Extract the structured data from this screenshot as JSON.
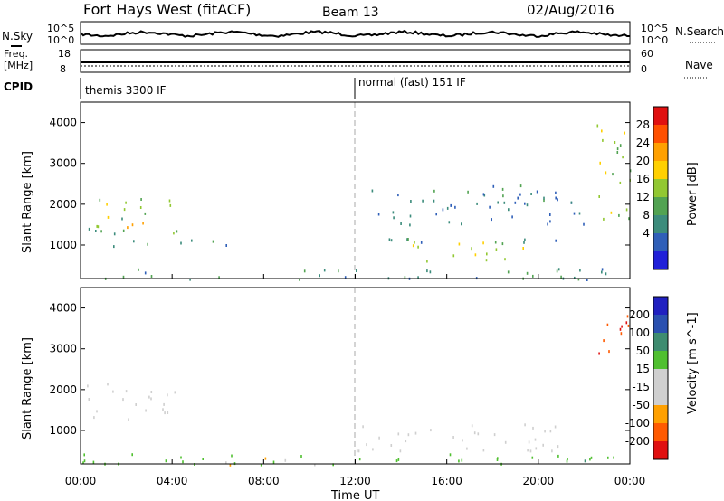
{
  "header": {
    "radar": "Fort Hays West (fitACF)",
    "beam": "Beam 13",
    "date": "02/Aug/2016"
  },
  "strip_noise": {
    "left_label": "N.Sky",
    "right_label": "N.Search",
    "left_ticks": [
      "10^5",
      "10^0"
    ],
    "right_ticks": [
      "10^5",
      "10^0"
    ]
  },
  "strip_freq": {
    "left_label_top": "Freq.",
    "left_label_bottom": "[MHz]",
    "right_label": "Nave",
    "left_ticks": [
      "18",
      "8"
    ],
    "right_ticks": [
      "60",
      "0"
    ]
  },
  "cpid": {
    "label": "CPID",
    "segments": [
      {
        "name": "themis 3300 IF",
        "start_hr": 0,
        "end_hr": 12
      },
      {
        "name": "normal (fast) 151 IF",
        "start_hr": 12,
        "end_hr": 24
      }
    ]
  },
  "time_axis": {
    "label": "Time UT",
    "ticks": [
      "00:00",
      "04:00",
      "08:00",
      "12:00",
      "16:00",
      "20:00",
      "00:00"
    ],
    "range_hr": [
      0,
      24
    ],
    "dashed_marker_hr": 12
  },
  "range_axis": {
    "label": "Slant Range [km]",
    "ticks": [
      "1000",
      "2000",
      "3000",
      "4000"
    ],
    "range_km": [
      180,
      4500
    ]
  },
  "power_colorbar": {
    "label": "Power [dB]",
    "ticks": [
      "4",
      "8",
      "12",
      "16",
      "20",
      "24",
      "28"
    ]
  },
  "velocity_colorbar": {
    "label": "Velocity [m s^-1]",
    "ticks": [
      "200",
      "100",
      "50",
      "15",
      "-15",
      "-50",
      "-100",
      "-200"
    ]
  },
  "colors": {
    "power": [
      "#2020d8",
      "#2f5fb8",
      "#3c8c7c",
      "#52a352",
      "#92c832",
      "#ffd000",
      "#ffa000",
      "#ff5000",
      "#e01010"
    ],
    "velocity": [
      "#e01010",
      "#ff5a00",
      "#ffa000",
      "#cfcfcf",
      "#cfcfcf",
      "#50c030",
      "#3e8c70",
      "#2a50b0",
      "#2020c0"
    ]
  },
  "chart_data": [
    {
      "type": "heatmap",
      "title": "Power",
      "xlabel": "Time UT",
      "ylabel": "Slant Range [km]",
      "x_unit": "hours UT",
      "y_unit": "km",
      "xlim": [
        0,
        24
      ],
      "ylim": [
        180,
        4500
      ],
      "features": [
        {
          "t0": 0.2,
          "t1": 4.2,
          "r0": 1300,
          "r1": 2200,
          "level_db": 14
        },
        {
          "t0": 1.5,
          "t1": 3.0,
          "r0": 1300,
          "r1": 1700,
          "level_db": 22
        },
        {
          "t0": 0.1,
          "t1": 6.5,
          "r0": 950,
          "r1": 1150,
          "level_db": 8
        },
        {
          "t0": 0.0,
          "t1": 24.0,
          "r0": 180,
          "r1": 450,
          "level_db": 10
        },
        {
          "t0": 14.5,
          "t1": 19.5,
          "r0": 600,
          "r1": 1100,
          "level_db": 18
        },
        {
          "t0": 12.0,
          "t1": 21.0,
          "r0": 1000,
          "r1": 1200,
          "level_db": 8
        },
        {
          "t0": 12.5,
          "t1": 22.0,
          "r0": 1500,
          "r1": 2500,
          "level_db": 8
        },
        {
          "t0": 22.5,
          "t1": 24.0,
          "r0": 1500,
          "r1": 4000,
          "level_db": 16
        }
      ]
    },
    {
      "type": "heatmap",
      "title": "Velocity",
      "xlabel": "Time UT",
      "ylabel": "Slant Range [km]",
      "x_unit": "hours UT",
      "y_unit": "km",
      "xlim": [
        0,
        24
      ],
      "ylim": [
        180,
        4500
      ],
      "features": [
        {
          "t0": 0.2,
          "t1": 4.2,
          "r0": 1300,
          "r1": 2200,
          "velocity": 0
        },
        {
          "t0": 0.0,
          "t1": 12.0,
          "r0": 180,
          "r1": 450,
          "velocity": 30
        },
        {
          "t0": 5.5,
          "t1": 10.5,
          "r0": 180,
          "r1": 350,
          "velocity": -40
        },
        {
          "t0": 12.0,
          "t1": 24.0,
          "r0": 180,
          "r1": 450,
          "velocity": 40
        },
        {
          "t0": 12.0,
          "t1": 21.0,
          "r0": 500,
          "r1": 1200,
          "velocity": 0
        },
        {
          "t0": 22.5,
          "t1": 24.0,
          "r0": 2800,
          "r1": 4000,
          "velocity": -200
        }
      ]
    }
  ]
}
